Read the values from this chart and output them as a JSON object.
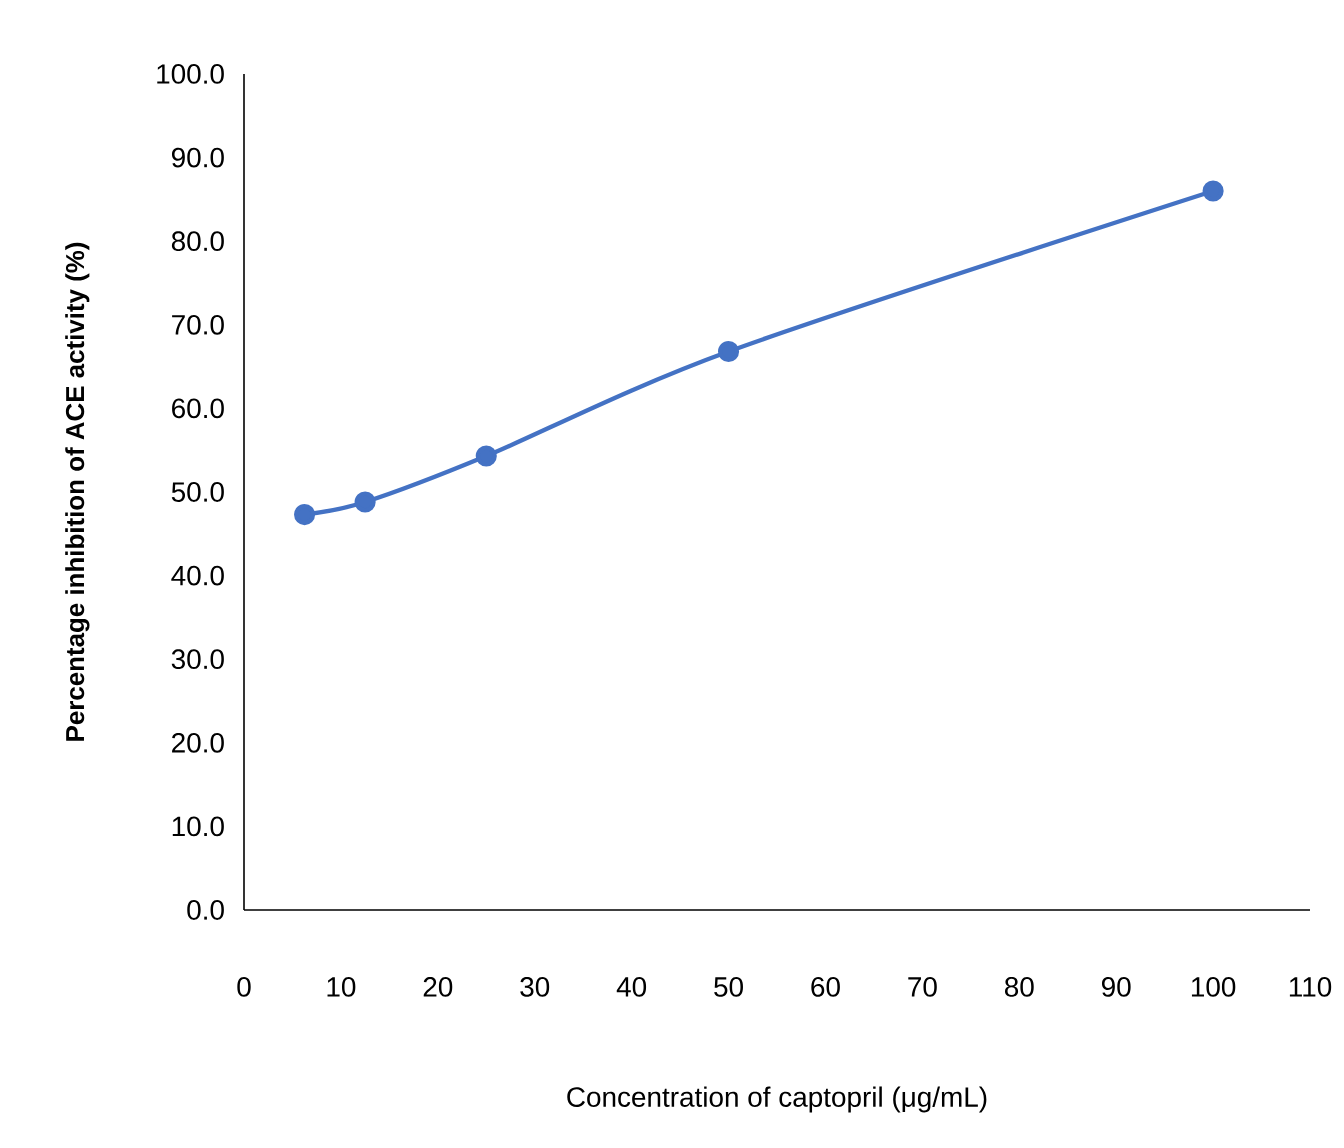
{
  "chart_data": {
    "type": "line",
    "xlabel": "Concentration of captopril (μg/mL)",
    "ylabel": "Percentage inhibition of ACE activity (%)",
    "x": [
      6.25,
      12.5,
      25,
      50,
      100
    ],
    "series": [
      {
        "color": "#4472c4",
        "values": [
          47.3,
          48.8,
          54.3,
          66.8,
          86.0
        ]
      }
    ],
    "xlim": [
      0,
      110
    ],
    "xticks": [
      0,
      10,
      20,
      30,
      40,
      50,
      60,
      70,
      80,
      90,
      100,
      110
    ],
    "ylim": [
      0,
      100
    ],
    "yticks": [
      {
        "value": 0,
        "label": "0.0"
      },
      {
        "value": 10,
        "label": "10.0"
      },
      {
        "value": 20,
        "label": "20.0"
      },
      {
        "value": 30,
        "label": "30.0"
      },
      {
        "value": 40,
        "label": "40.0"
      },
      {
        "value": 50,
        "label": "50.0"
      },
      {
        "value": 60,
        "label": "60.0"
      },
      {
        "value": 70,
        "label": "70.0"
      },
      {
        "value": 80,
        "label": "80.0"
      },
      {
        "value": 90,
        "label": "90.0"
      },
      {
        "value": 100,
        "label": "100.0"
      }
    ],
    "marker": "circle",
    "line_style": "solid"
  }
}
